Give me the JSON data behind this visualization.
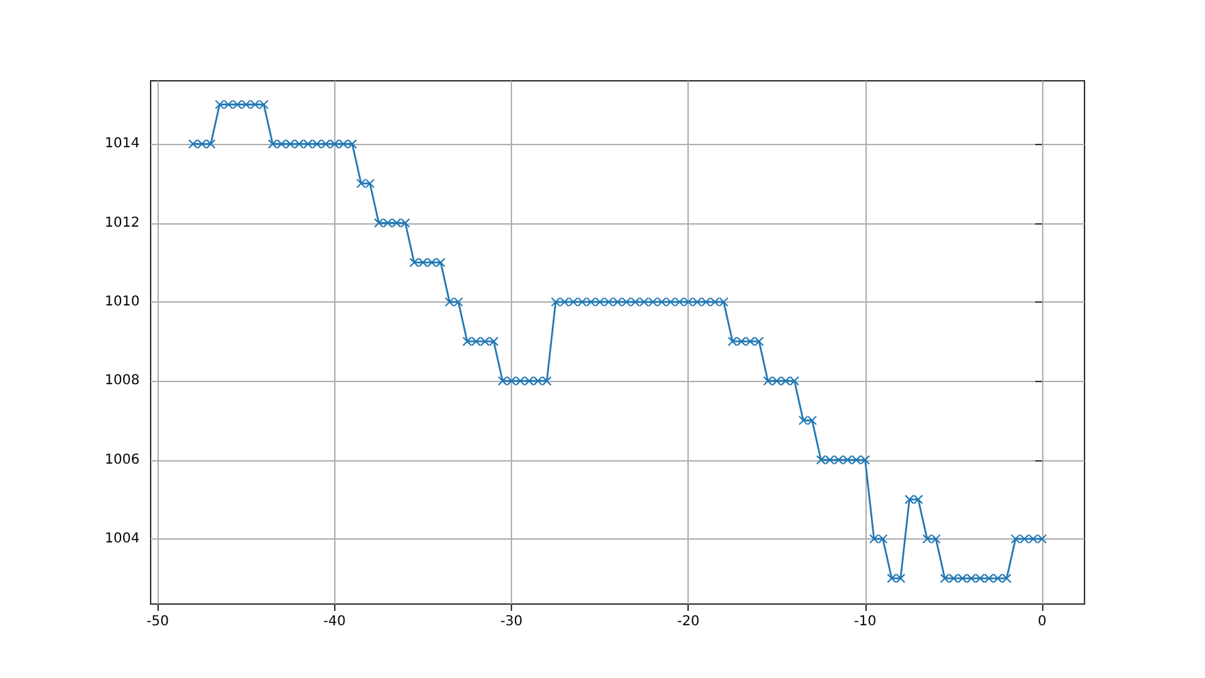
{
  "chart_data": {
    "type": "line",
    "marker": "cross",
    "grid": true,
    "x": [
      -48,
      -47.5,
      -47,
      -46.5,
      -46,
      -45.5,
      -45,
      -44.5,
      -44,
      -43.5,
      -43,
      -42.5,
      -42,
      -41.5,
      -41,
      -40.5,
      -40,
      -39.5,
      -39,
      -38.5,
      -38,
      -37.5,
      -37,
      -36.5,
      -36,
      -35.5,
      -35,
      -34.5,
      -34,
      -33.5,
      -33,
      -32.5,
      -32,
      -31.5,
      -31,
      -30.5,
      -30,
      -29.5,
      -29,
      -28.5,
      -28,
      -27.5,
      -27,
      -26.5,
      -26,
      -25.5,
      -25,
      -24.5,
      -24,
      -23.5,
      -23,
      -22.5,
      -22,
      -21.5,
      -21,
      -20.5,
      -20,
      -19.5,
      -19,
      -18.5,
      -18,
      -17.5,
      -17,
      -16.5,
      -16,
      -15.5,
      -15,
      -14.5,
      -14,
      -13.5,
      -13,
      -12.5,
      -12,
      -11.5,
      -11,
      -10.5,
      -10,
      -9.5,
      -9,
      -8.5,
      -8,
      -7.5,
      -7,
      -6.5,
      -6,
      -5.5,
      -5,
      -4.5,
      -4,
      -3.5,
      -3,
      -2.5,
      -2,
      -1.5,
      -1,
      -0.5,
      0
    ],
    "series": [
      {
        "color": "#1f77b4",
        "values": [
          1014,
          1014,
          1014,
          1015,
          1015,
          1015,
          1015,
          1015,
          1015,
          1014,
          1014,
          1014,
          1014,
          1014,
          1014,
          1014,
          1014,
          1014,
          1014,
          1013,
          1013,
          1012,
          1012,
          1012,
          1012,
          1011,
          1011,
          1011,
          1011,
          1010,
          1010,
          1009,
          1009,
          1009,
          1009,
          1008,
          1008,
          1008,
          1008,
          1008,
          1008,
          1010,
          1010,
          1010,
          1010,
          1010,
          1010,
          1010,
          1010,
          1010,
          1010,
          1010,
          1010,
          1010,
          1010,
          1010,
          1010,
          1010,
          1010,
          1010,
          1010,
          1009,
          1009,
          1009,
          1009,
          1008,
          1008,
          1008,
          1008,
          1007,
          1007,
          1006,
          1006,
          1006,
          1006,
          1006,
          1006,
          1004,
          1004,
          1003,
          1003,
          1005,
          1005,
          1004,
          1004,
          1003,
          1003,
          1003,
          1003,
          1003,
          1003,
          1003,
          1003,
          1004,
          1004,
          1004,
          1004
        ]
      }
    ],
    "xlim": [
      -50.4,
      2.4
    ],
    "xticks": [
      -50,
      -40,
      -30,
      -20,
      -10,
      0
    ],
    "ylim": [
      1002.35,
      1015.6
    ],
    "yticks": [
      1004,
      1006,
      1008,
      1010,
      1012,
      1014
    ]
  }
}
